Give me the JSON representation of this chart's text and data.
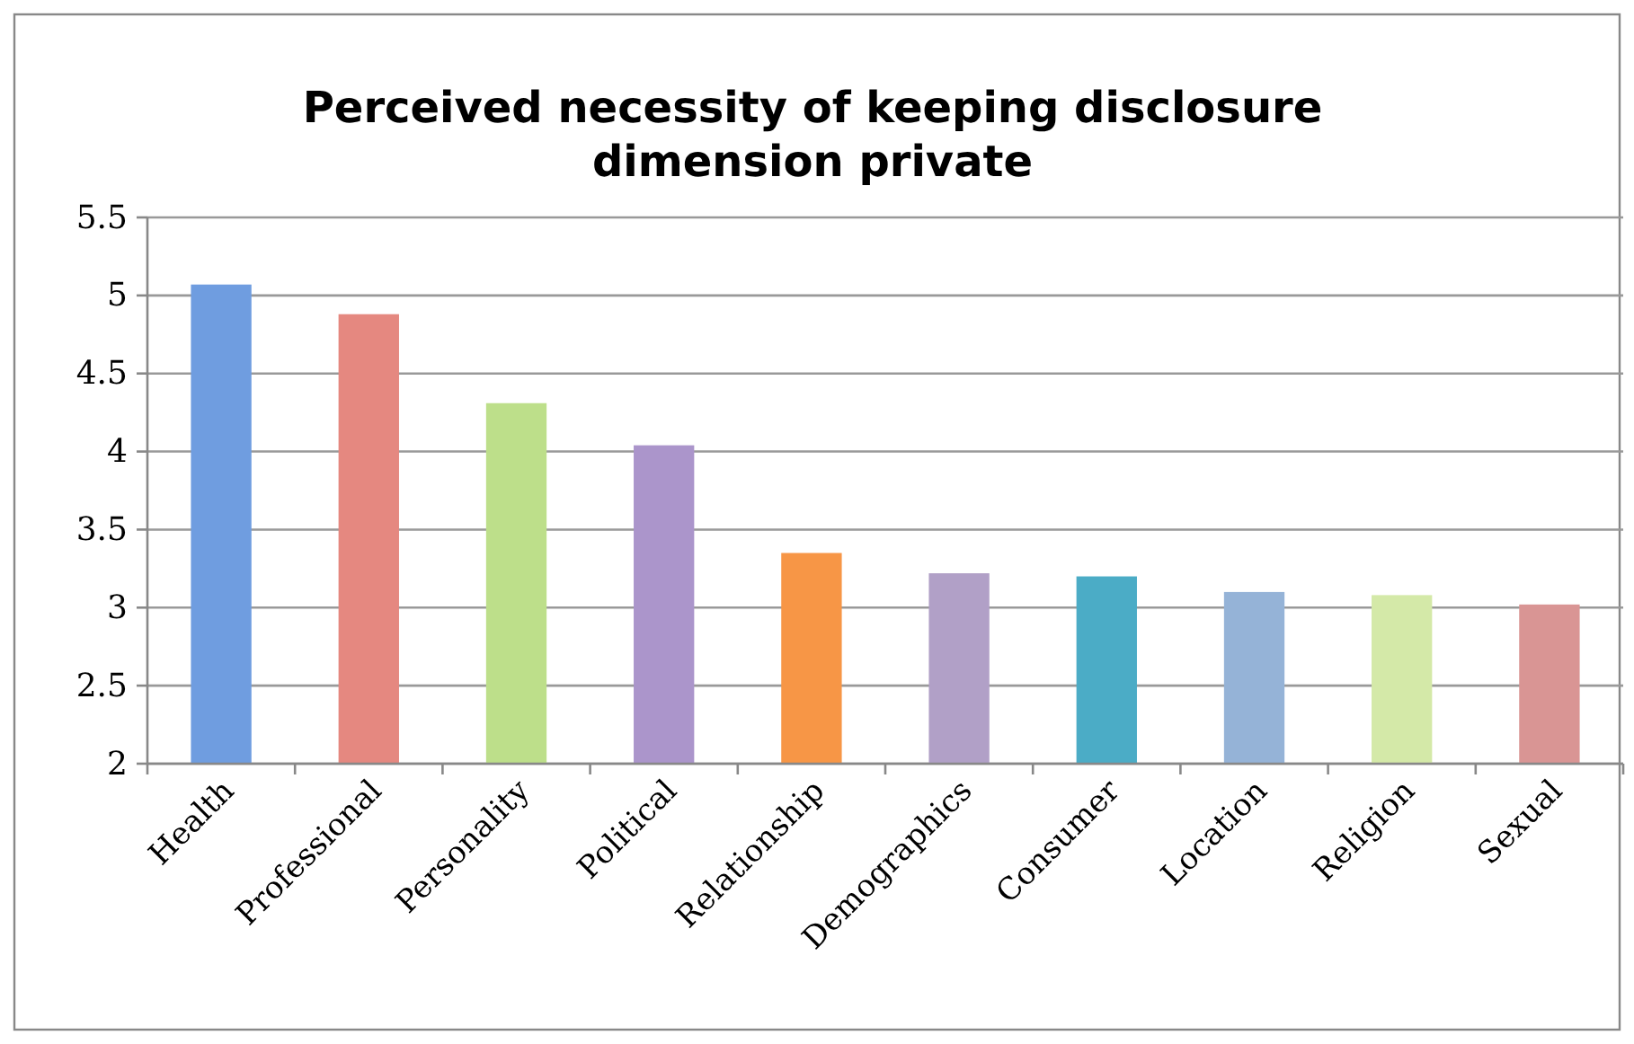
{
  "chart_data": {
    "type": "bar",
    "title": "Perceived necessity of keeping disclosure dimension private",
    "categories": [
      "Health",
      "Professional",
      "Personality",
      "Political",
      "Relationship",
      "Demographics",
      "Consumer",
      "Location",
      "Religion",
      "Sexual"
    ],
    "values": [
      5.07,
      4.88,
      4.31,
      4.04,
      3.35,
      3.22,
      3.2,
      3.1,
      3.08,
      3.02
    ],
    "colors": [
      "#6f9de0",
      "#e58880",
      "#bddf8a",
      "#ab95cb",
      "#f79646",
      "#b1a0c7",
      "#4bacc6",
      "#95b3d7",
      "#d4e9a8",
      "#d99594"
    ],
    "ylim": [
      2,
      5.5
    ],
    "yticks": [
      2,
      2.5,
      3,
      3.5,
      4,
      4.5,
      5,
      5.5
    ],
    "grid": "y"
  }
}
